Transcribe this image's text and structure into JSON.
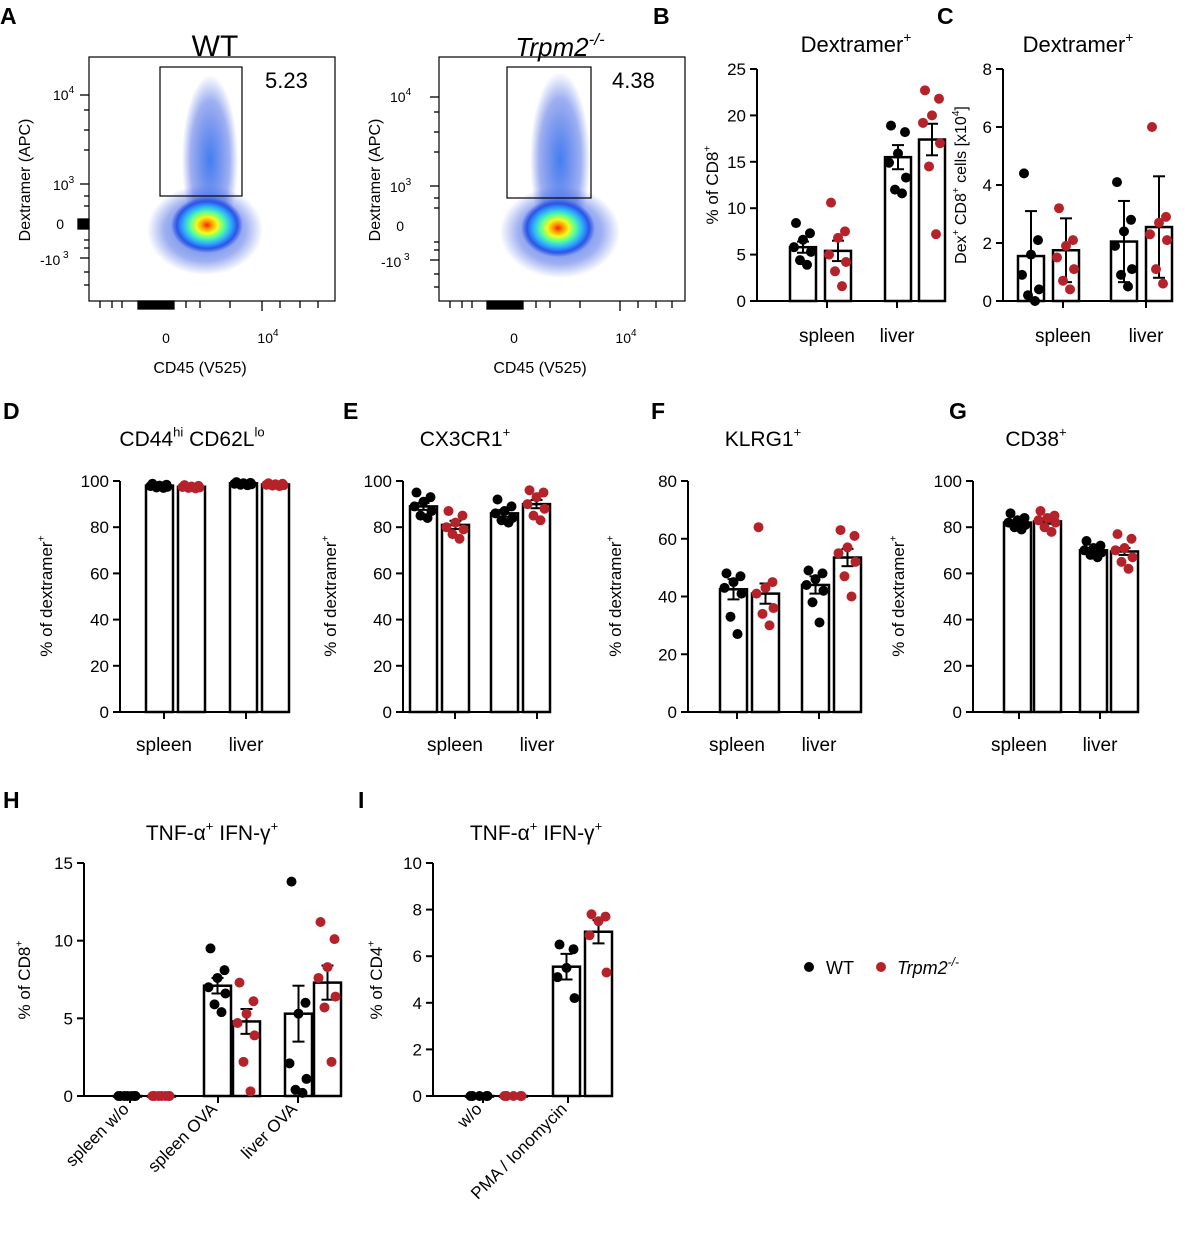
{
  "colors": {
    "wt": "#000000",
    "ko": "#b5222a",
    "bar_fill": "#ffffff",
    "axis": "#000000"
  },
  "legend": {
    "wt_label": "WT",
    "ko_label": "Trpm2",
    "ko_sup": "-/-"
  },
  "flow": [
    {
      "letter": "A",
      "title": "WT",
      "title_italic": false,
      "title_sup": "",
      "gate_value": "5.23",
      "ylabel": "Dextramer (APC)",
      "xlabel": "CD45 (V525)",
      "yticks": [
        {
          "base": "10",
          "exp": "4"
        },
        {
          "base": "10",
          "exp": "3"
        },
        {
          "base": "0",
          "exp": ""
        },
        {
          "base": "-10",
          "exp": " 3"
        }
      ],
      "xticks": [
        {
          "base": "0",
          "exp": ""
        },
        {
          "base": "10",
          "exp": "4"
        }
      ]
    },
    {
      "letter": "",
      "title": "Trpm2",
      "title_italic": true,
      "title_sup": "-/-",
      "gate_value": "4.38",
      "ylabel": "Dextramer (APC)",
      "xlabel": "CD45 (V525)",
      "yticks": [
        {
          "base": "10",
          "exp": "4"
        },
        {
          "base": "10",
          "exp": "3"
        },
        {
          "base": "0",
          "exp": ""
        },
        {
          "base": "-10",
          "exp": " 3"
        }
      ],
      "xticks": [
        {
          "base": "0",
          "exp": ""
        },
        {
          "base": "10",
          "exp": "4"
        }
      ]
    }
  ],
  "chart_data": [
    {
      "panel": "B",
      "type": "bar",
      "title": "Dextramer",
      "title_sup": "+",
      "ylabel": "% of CD8",
      "ylabel_sup": "+",
      "ylim": [
        0,
        25
      ],
      "yticks": [
        "0",
        "5",
        "10",
        "15",
        "20",
        "25"
      ],
      "categories": [
        "spleen",
        "liver"
      ],
      "series": [
        {
          "name": "WT",
          "means": [
            5.8,
            15.5
          ],
          "sem": [
            0.6,
            1.3
          ],
          "points": [
            [
              8.4,
              7.3,
              6.6,
              5.8,
              5.3,
              4.4,
              3.9
            ],
            [
              18.9,
              18.2,
              15.9,
              14.9,
              13.3,
              12.0,
              11.6
            ]
          ]
        },
        {
          "name": "Trpm2-/-",
          "means": [
            5.4,
            17.4
          ],
          "sem": [
            1.1,
            1.7
          ],
          "points": [
            [
              10.6,
              7.5,
              6.8,
              5.0,
              4.2,
              3.2,
              1.6
            ],
            [
              22.7,
              21.8,
              20.0,
              19.2,
              17.0,
              14.5,
              7.2
            ]
          ]
        }
      ]
    },
    {
      "panel": "C",
      "type": "bar",
      "title": "Dextramer",
      "title_sup": "+",
      "ylabel": "Dex+ CD8+ cells [x10^4]",
      "ylim": [
        0,
        8
      ],
      "yticks": [
        "0",
        "2",
        "4",
        "6",
        "8"
      ],
      "categories": [
        "spleen",
        "liver"
      ],
      "series": [
        {
          "name": "WT",
          "means": [
            1.55,
            2.05
          ],
          "sem": [
            1.55,
            1.4
          ],
          "points": [
            [
              4.4,
              2.1,
              1.6,
              0.9,
              0.4,
              0.2,
              0.0
            ],
            [
              4.1,
              2.8,
              2.4,
              1.9,
              1.1,
              0.9,
              0.5
            ]
          ]
        },
        {
          "name": "Trpm2-/-",
          "means": [
            1.75,
            2.55
          ],
          "sem": [
            1.1,
            1.75
          ],
          "points": [
            [
              3.2,
              2.1,
              1.9,
              1.5,
              1.1,
              0.7,
              0.4
            ],
            [
              6.0,
              2.9,
              2.7,
              2.3,
              2.1,
              1.1,
              0.6
            ]
          ]
        }
      ]
    },
    {
      "panel": "D",
      "type": "bar",
      "title": "CD44",
      "title_sup": "hi",
      "title2": " CD62L",
      "title2_sup": "lo",
      "ylabel": "% of dextramer",
      "ylabel_sup": "+",
      "ylim": [
        0,
        100
      ],
      "yticks": [
        "0",
        "20",
        "40",
        "60",
        "80",
        "100"
      ],
      "categories": [
        "spleen",
        "liver"
      ],
      "series": [
        {
          "name": "WT",
          "means": [
            98,
            99
          ],
          "sem": [
            0.3,
            0.2
          ],
          "points": [
            [
              98.8,
              98.4,
              98.0,
              97.8,
              97.5,
              97.2,
              97.0
            ],
            [
              99.5,
              99.2,
              99.0,
              98.8,
              98.6,
              98.4,
              98.2
            ]
          ]
        },
        {
          "name": "Trpm2-/-",
          "means": [
            97.5,
            98.5
          ],
          "sem": [
            0.3,
            0.2
          ],
          "points": [
            [
              98.2,
              97.9,
              97.6,
              97.4,
              97.2,
              97.0,
              96.8
            ],
            [
              99.0,
              98.8,
              98.6,
              98.4,
              98.2,
              98.0,
              97.8
            ]
          ]
        }
      ]
    },
    {
      "panel": "E",
      "type": "bar",
      "title": "CX3CR1",
      "title_sup": "+",
      "ylabel": "% of dextramer",
      "ylabel_sup": "+",
      "ylim": [
        0,
        100
      ],
      "yticks": [
        "0",
        "20",
        "40",
        "60",
        "80",
        "100"
      ],
      "categories": [
        "spleen",
        "liver"
      ],
      "series": [
        {
          "name": "WT",
          "means": [
            89,
            86
          ],
          "sem": [
            1.5,
            1.5
          ],
          "points": [
            [
              95,
              93,
              91,
              89,
              87,
              85,
              84
            ],
            [
              92,
              89,
              87,
              86,
              84,
              83,
              82
            ]
          ]
        },
        {
          "name": "Trpm2-/-",
          "means": [
            81,
            90
          ],
          "sem": [
            1.8,
            1.8
          ],
          "points": [
            [
              87,
              85,
              82,
              80,
              79,
              77,
              75
            ],
            [
              96,
              95,
              93,
              90,
              88,
              85,
              83
            ]
          ]
        }
      ]
    },
    {
      "panel": "F",
      "type": "bar",
      "title": "KLRG1",
      "title_sup": "+",
      "ylabel": "% of dextramer",
      "ylabel_sup": "+",
      "ylim": [
        0,
        80
      ],
      "yticks": [
        "0",
        "20",
        "40",
        "60",
        "80"
      ],
      "categories": [
        "spleen",
        "liver"
      ],
      "series": [
        {
          "name": "WT",
          "means": [
            42.5,
            44
          ],
          "sem": [
            3.5,
            3
          ],
          "points": [
            [
              48,
              47,
              45,
              43,
              41,
              33,
              27
            ],
            [
              49,
              48,
              46,
              44,
              42,
              38,
              31
            ]
          ]
        },
        {
          "name": "Trpm2-/-",
          "means": [
            41,
            53.5
          ],
          "sem": [
            3.5,
            3
          ],
          "points": [
            [
              64,
              45,
              43,
              41,
              36,
              34,
              30
            ],
            [
              63,
              61,
              57,
              55,
              52,
              47,
              40
            ]
          ]
        }
      ]
    },
    {
      "panel": "G",
      "type": "bar",
      "title": "CD38",
      "title_sup": "+",
      "ylabel": "% of dextramer",
      "ylabel_sup": "+",
      "ylim": [
        0,
        100
      ],
      "yticks": [
        "0",
        "20",
        "40",
        "60",
        "80",
        "100"
      ],
      "categories": [
        "spleen",
        "liver"
      ],
      "series": [
        {
          "name": "WT",
          "means": [
            82,
            70
          ],
          "sem": [
            1,
            1
          ],
          "points": [
            [
              86,
              84,
              83,
              82,
              81,
              80,
              79
            ],
            [
              74,
              72,
              71,
              70,
              69,
              68,
              67
            ]
          ]
        },
        {
          "name": "Trpm2-/-",
          "means": [
            82.5,
            69.5
          ],
          "sem": [
            1,
            1.5
          ],
          "points": [
            [
              87,
              85,
              84,
              83,
              82,
              80,
              78
            ],
            [
              77,
              75,
              71,
              70,
              67,
              65,
              62
            ]
          ]
        }
      ]
    },
    {
      "panel": "H",
      "type": "bar",
      "title": "TNF-α",
      "title_sup": "+",
      "title2": " IFN-γ",
      "title2_sup": "+",
      "ylabel": "% of CD8",
      "ylabel_sup": "+",
      "ylim": [
        0,
        15
      ],
      "yticks": [
        "0",
        "5",
        "10",
        "15"
      ],
      "categories": [
        "spleen w/o",
        "spleen OVA",
        "liver OVA"
      ],
      "series": [
        {
          "name": "WT",
          "means": [
            0,
            7.1,
            5.3
          ],
          "sem": [
            0,
            0.5,
            1.8
          ],
          "points": [
            [
              0,
              0,
              0,
              0,
              0,
              0,
              0
            ],
            [
              9.5,
              8.1,
              7.6,
              7.0,
              6.6,
              5.9,
              5.4
            ],
            [
              13.8,
              6.0,
              5.3,
              2.1,
              1.1,
              0.4,
              0.2
            ]
          ]
        },
        {
          "name": "Trpm2-/-",
          "means": [
            0,
            4.8,
            7.3
          ],
          "sem": [
            0,
            0.8,
            1.1
          ],
          "points": [
            [
              0,
              0,
              0,
              0,
              0,
              0,
              0
            ],
            [
              7.3,
              6.1,
              5.3,
              4.7,
              3.9,
              2.2,
              0.3
            ],
            [
              11.2,
              10.1,
              8.3,
              7.6,
              6.4,
              5.7,
              2.2
            ]
          ]
        }
      ]
    },
    {
      "panel": "I",
      "type": "bar",
      "title": "TNF-α",
      "title_sup": "+",
      "title2": " IFN-γ",
      "title2_sup": "+",
      "ylabel": "% of CD4",
      "ylabel_sup": "+",
      "ylim": [
        0,
        10
      ],
      "yticks": [
        "0",
        "2",
        "4",
        "6",
        "8",
        "10"
      ],
      "categories": [
        "w/o",
        "PMA / Ionomycin"
      ],
      "series": [
        {
          "name": "WT",
          "means": [
            0,
            5.55
          ],
          "sem": [
            0,
            0.55
          ],
          "points": [
            [
              0,
              0,
              0,
              0,
              0
            ],
            [
              6.5,
              6.3,
              5.5,
              5.1,
              4.2
            ]
          ]
        },
        {
          "name": "Trpm2-/-",
          "means": [
            0,
            7.05
          ],
          "sem": [
            0,
            0.5
          ],
          "points": [
            [
              0,
              0,
              0,
              0,
              0
            ],
            [
              7.8,
              7.7,
              7.5,
              6.9,
              5.3
            ]
          ]
        }
      ]
    }
  ]
}
